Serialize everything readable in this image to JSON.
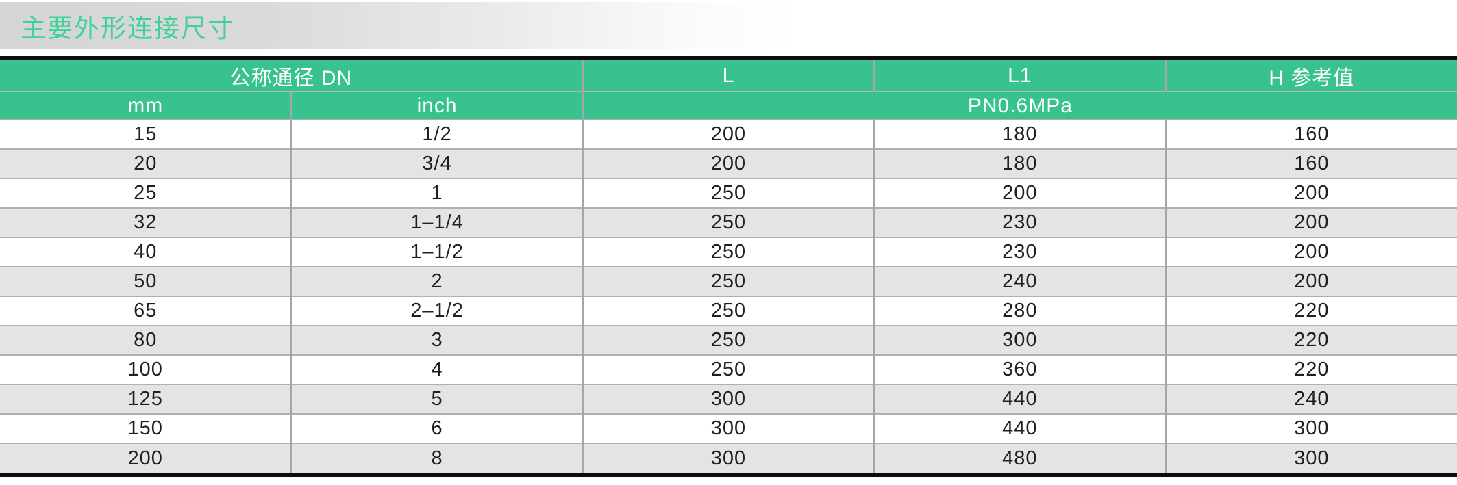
{
  "title": "主要外形连接尺寸",
  "colors": {
    "accent_green": "#37c28e",
    "title_green": "#3ed29a",
    "row_alt": "#e4e4e4"
  },
  "table": {
    "header_row_1": [
      {
        "label": "公称通径 DN",
        "colspan": 2
      },
      {
        "label": "L",
        "colspan": 1
      },
      {
        "label": "L1",
        "colspan": 1
      },
      {
        "label": "H 参考值",
        "colspan": 1
      }
    ],
    "header_row_2": [
      {
        "label": "mm",
        "colspan": 1
      },
      {
        "label": "inch",
        "colspan": 1
      },
      {
        "label": "PN0.6MPa",
        "colspan": 3
      }
    ],
    "rows": [
      [
        "15",
        "1/2",
        "200",
        "180",
        "160"
      ],
      [
        "20",
        "3/4",
        "200",
        "180",
        "160"
      ],
      [
        "25",
        "1",
        "250",
        "200",
        "200"
      ],
      [
        "32",
        "1–1/4",
        "250",
        "230",
        "200"
      ],
      [
        "40",
        "1–1/2",
        "250",
        "230",
        "200"
      ],
      [
        "50",
        "2",
        "250",
        "240",
        "200"
      ],
      [
        "65",
        "2–1/2",
        "250",
        "280",
        "220"
      ],
      [
        "80",
        "3",
        "250",
        "300",
        "220"
      ],
      [
        "100",
        "4",
        "250",
        "360",
        "220"
      ],
      [
        "125",
        "5",
        "300",
        "440",
        "240"
      ],
      [
        "150",
        "6",
        "300",
        "440",
        "300"
      ],
      [
        "200",
        "8",
        "300",
        "480",
        "300"
      ]
    ]
  }
}
